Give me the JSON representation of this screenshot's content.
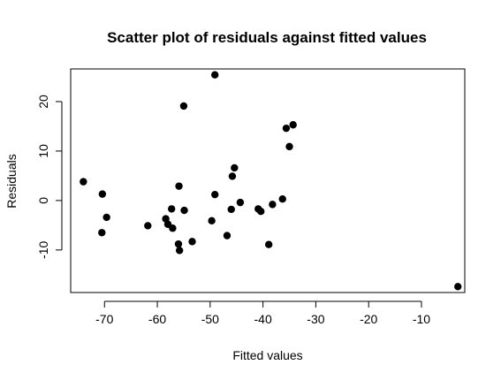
{
  "chart_data": {
    "type": "scatter",
    "title": "Scatter plot of residuals against fitted values",
    "xlabel": "Fitted values",
    "ylabel": "Residuals",
    "xlim": [
      -76.4,
      -1.8
    ],
    "ylim": [
      -18.6,
      26.6
    ],
    "xticks": [
      -70,
      -60,
      -50,
      -40,
      -30,
      -20,
      -10
    ],
    "yticks": [
      -10,
      0,
      10,
      20
    ],
    "grid": false,
    "points": [
      {
        "x": -74.0,
        "y": 3.8
      },
      {
        "x": -70.4,
        "y": 1.3
      },
      {
        "x": -70.5,
        "y": -6.5
      },
      {
        "x": -69.6,
        "y": -3.4
      },
      {
        "x": -61.8,
        "y": -5.1
      },
      {
        "x": -58.4,
        "y": -3.7
      },
      {
        "x": -58.0,
        "y": -4.8
      },
      {
        "x": -57.3,
        "y": -1.7
      },
      {
        "x": -57.1,
        "y": -5.6
      },
      {
        "x": -56.0,
        "y": -8.8
      },
      {
        "x": -55.8,
        "y": -10.1
      },
      {
        "x": -55.9,
        "y": 2.9
      },
      {
        "x": -55.0,
        "y": 19.1
      },
      {
        "x": -54.9,
        "y": -2.0
      },
      {
        "x": -53.4,
        "y": -8.3
      },
      {
        "x": -49.7,
        "y": -4.1
      },
      {
        "x": -49.1,
        "y": 25.4
      },
      {
        "x": -49.1,
        "y": 1.2
      },
      {
        "x": -46.8,
        "y": -7.1
      },
      {
        "x": -46.0,
        "y": -1.8
      },
      {
        "x": -45.8,
        "y": 4.9
      },
      {
        "x": -45.4,
        "y": 6.6
      },
      {
        "x": -44.3,
        "y": -0.4
      },
      {
        "x": -40.9,
        "y": -1.7
      },
      {
        "x": -40.4,
        "y": -2.2
      },
      {
        "x": -38.9,
        "y": -8.9
      },
      {
        "x": -38.2,
        "y": -0.8
      },
      {
        "x": -36.3,
        "y": 0.3
      },
      {
        "x": -35.6,
        "y": 14.6
      },
      {
        "x": -35.0,
        "y": 10.9
      },
      {
        "x": -34.3,
        "y": 15.3
      },
      {
        "x": -3.1,
        "y": -17.4
      }
    ]
  }
}
